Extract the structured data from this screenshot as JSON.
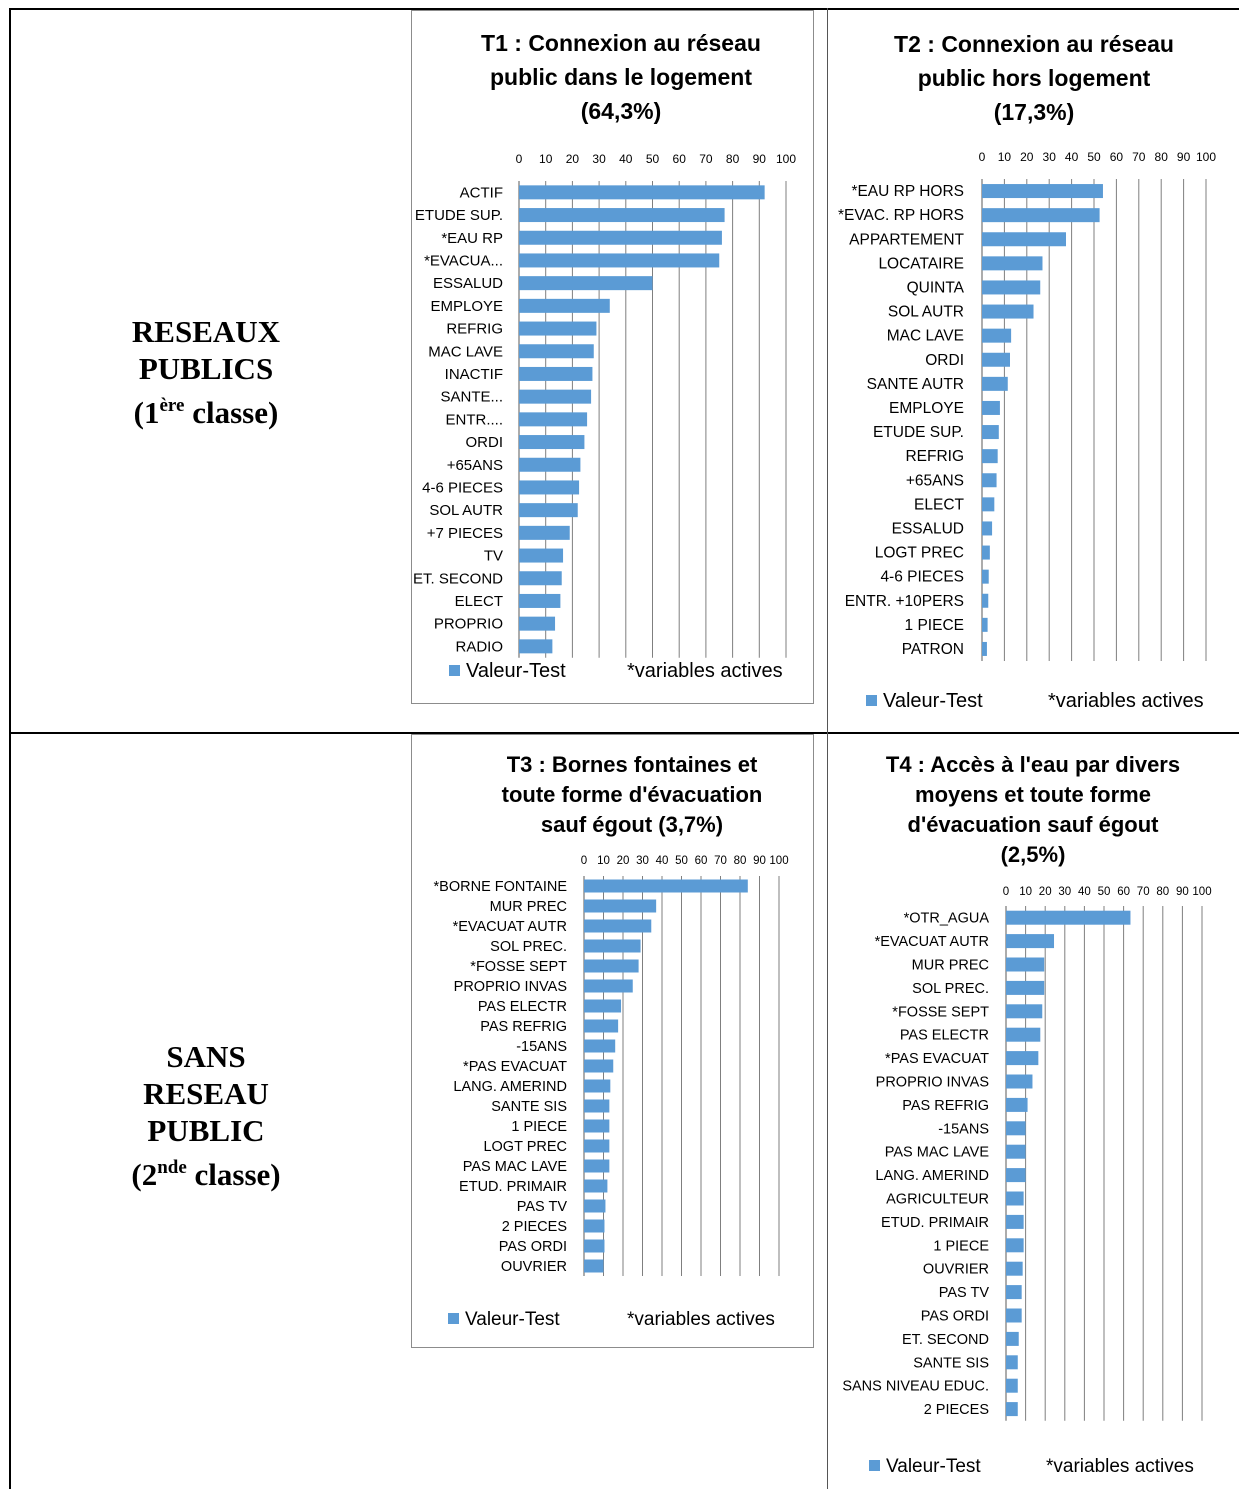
{
  "rows": [
    {
      "label_lines": [
        "RESEAUX",
        "PUBLICS"
      ],
      "class_num": "1",
      "class_sup": "ère",
      "class_word": "classe"
    },
    {
      "label_lines": [
        "SANS",
        "RESEAU",
        "PUBLIC"
      ],
      "class_num": "2",
      "class_sup": "nde",
      "class_word": "classe"
    }
  ],
  "legend": {
    "series": "Valeur-Test",
    "note": "*variables actives"
  },
  "colors": {
    "bar": "#5b9bd5",
    "grid": "#7f7f7f"
  },
  "chart_data": [
    {
      "type": "bar",
      "orientation": "horizontal",
      "title_lines": [
        "T1 : Connexion au réseau",
        "public dans le logement",
        "(64,3%)"
      ],
      "xlim": [
        0,
        100
      ],
      "ticks": [
        0,
        10,
        20,
        30,
        40,
        50,
        60,
        70,
        80,
        90,
        100
      ],
      "categories": [
        "ACTIF",
        "ETUDE SUP.",
        "*EAU RP",
        "*EVACUA...",
        "ESSALUD",
        "EMPLOYE",
        "REFRIG",
        "MAC LAVE",
        "INACTIF",
        "SANTE...",
        "ENTR....",
        "ORDI",
        "+65ANS",
        "4-6 PIECES",
        "SOL AUTR",
        "+7 PIECES",
        "TV",
        "ET. SECOND",
        "ELECT",
        "PROPRIO",
        "RADIO"
      ],
      "values": [
        92,
        77,
        76,
        75,
        50,
        34,
        29,
        28,
        27.5,
        27,
        25.5,
        24.5,
        23,
        22.5,
        22,
        19,
        16.5,
        16,
        15.5,
        13.5,
        12.5
      ]
    },
    {
      "type": "bar",
      "orientation": "horizontal",
      "title_lines": [
        "T2 : Connexion au réseau",
        "public hors logement",
        "(17,3%)"
      ],
      "xlim": [
        0,
        100
      ],
      "ticks": [
        0,
        10,
        20,
        30,
        40,
        50,
        60,
        70,
        80,
        90,
        100
      ],
      "categories": [
        "*EAU RP HORS",
        "*EVAC. RP HORS",
        "APPARTEMENT",
        "LOCATAIRE",
        "QUINTA",
        "SOL AUTR",
        "MAC LAVE",
        "ORDI",
        "SANTE AUTR",
        "EMPLOYE",
        "ETUDE SUP.",
        "REFRIG",
        "+65ANS",
        "ELECT",
        "ESSALUD",
        "LOGT PREC",
        "4-6 PIECES",
        "ENTR. +10PERS",
        "1 PIECE",
        "PATRON"
      ],
      "values": [
        54,
        52.5,
        37.5,
        27,
        26,
        23,
        13,
        12.5,
        11.5,
        8,
        7.5,
        7,
        6.5,
        5.5,
        4.5,
        3.5,
        3,
        2.8,
        2.5,
        2.2
      ]
    },
    {
      "type": "bar",
      "orientation": "horizontal",
      "title_lines": [
        "T3 : Bornes fontaines et",
        "toute forme d'évacuation",
        "sauf égout (3,7%)"
      ],
      "xlim": [
        0,
        100
      ],
      "ticks": [
        0,
        10,
        20,
        30,
        40,
        50,
        60,
        70,
        80,
        90,
        100
      ],
      "categories": [
        "*BORNE FONTAINE",
        "MUR PREC",
        "*EVACUAT AUTR",
        "SOL PREC.",
        "*FOSSE SEPT",
        "PROPRIO INVAS",
        "PAS ELECTR",
        "PAS REFRIG",
        "-15ANS",
        "*PAS EVACUAT",
        "LANG. AMERIND",
        "SANTE SIS",
        "1 PIECE",
        "LOGT PREC",
        "PAS MAC LAVE",
        "ETUD. PRIMAIR",
        "PAS TV",
        "2 PIECES",
        "PAS ORDI",
        "OUVRIER"
      ],
      "values": [
        84,
        37,
        34.5,
        29,
        28,
        25,
        19,
        17.5,
        16,
        15,
        13.5,
        13,
        13,
        13,
        13,
        12,
        11,
        10.5,
        10.5,
        10
      ]
    },
    {
      "type": "bar",
      "orientation": "horizontal",
      "title_lines": [
        "T4 : Accès à l'eau par divers",
        "moyens et toute forme",
        "d'évacuation sauf égout",
        "(2,5%)"
      ],
      "xlim": [
        0,
        100
      ],
      "ticks": [
        0,
        10,
        20,
        30,
        40,
        50,
        60,
        70,
        80,
        90,
        100
      ],
      "categories": [
        "*OTR_AGUA",
        "*EVACUAT AUTR",
        "MUR PREC",
        "SOL PREC.",
        "*FOSSE SEPT",
        "PAS ELECTR",
        "*PAS EVACUAT",
        "PROPRIO INVAS",
        "PAS REFRIG",
        "-15ANS",
        "PAS MAC LAVE",
        "LANG. AMERIND",
        "AGRICULTEUR",
        "ETUD. PRIMAIR",
        "1 PIECE",
        "OUVRIER",
        "PAS TV",
        "PAS ORDI",
        "ET. SECOND",
        "SANTE SIS",
        "SANS NIVEAU EDUC.",
        "2 PIECES"
      ],
      "values": [
        63.5,
        24.5,
        19.5,
        19.5,
        18.5,
        17.5,
        16.5,
        13.5,
        11,
        10,
        10,
        10,
        9,
        9,
        9,
        8.5,
        8,
        8,
        6.5,
        6,
        6,
        6
      ]
    }
  ]
}
